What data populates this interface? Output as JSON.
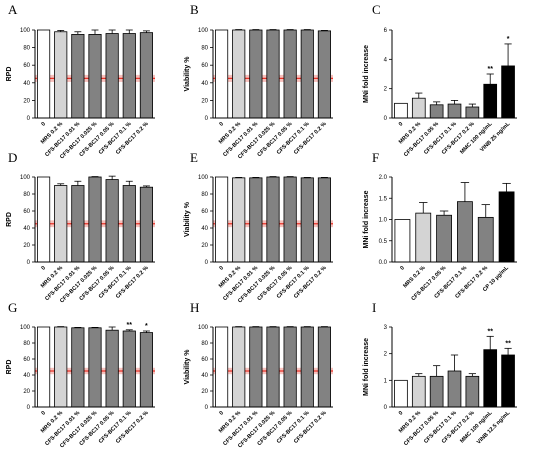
{
  "colors": {
    "white_bar": "#ffffff",
    "light_grey_bar": "#d4d4d4",
    "dark_grey_bar": "#828282",
    "black_bar": "#000000",
    "threshold_line": "#e8342a",
    "threshold_band": "#f6b5b0"
  },
  "chart_data": [
    {
      "panel": "A",
      "type": "bar",
      "ylabel": "RPD",
      "ylim": [
        0,
        100
      ],
      "yticks": [
        0,
        20,
        40,
        60,
        80,
        100
      ],
      "threshold": 45,
      "threshold_band": [
        41,
        49
      ],
      "categories": [
        "0",
        "MRS 0.2 %",
        "CFS-BC17 0.01 %",
        "CFS-BC17 0.025 %",
        "CFS-BC17 0.05 %",
        "CFS-BC17 0.1 %",
        "CFS-BC17 0.2 %"
      ],
      "values": [
        100,
        98,
        95,
        95,
        96,
        96,
        97
      ],
      "errors": [
        0,
        1.5,
        3,
        5,
        4,
        4,
        2
      ],
      "fills": [
        "white",
        "light",
        "dark",
        "dark",
        "dark",
        "dark",
        "dark"
      ],
      "stars": [
        "",
        "",
        "",
        "",
        "",
        "",
        ""
      ]
    },
    {
      "panel": "B",
      "type": "bar",
      "ylabel": "Viability %",
      "ylim": [
        0,
        100
      ],
      "yticks": [
        0,
        20,
        40,
        60,
        80,
        100
      ],
      "threshold": 45,
      "threshold_band": [
        41,
        49
      ],
      "categories": [
        "0",
        "MRS 0.2 %",
        "CFS-BC17 0.01 %",
        "CFS-BC17 0.025 %",
        "CFS-BC17 0.05 %",
        "CFS-BC17 0.1 %",
        "CFS-BC17 0.2 %"
      ],
      "values": [
        100,
        100,
        100,
        100,
        100,
        100,
        99
      ],
      "errors": [
        0,
        0.5,
        0.5,
        0.5,
        0.5,
        0.5,
        0.5
      ],
      "fills": [
        "white",
        "light",
        "dark",
        "dark",
        "dark",
        "dark",
        "dark"
      ],
      "stars": [
        "",
        "",
        "",
        "",
        "",
        "",
        ""
      ]
    },
    {
      "panel": "C",
      "type": "bar",
      "ylabel": "MNi fold increase",
      "ylim": [
        0,
        6
      ],
      "yticks": [
        0,
        2,
        4,
        6
      ],
      "threshold": null,
      "threshold_band": null,
      "categories": [
        "0",
        "MRS 0.2 %",
        "CFS-BC17 0.05 %",
        "CFS-BC17 0.1 %",
        "CFS-BC17 0.2 %",
        "MMC 100 ng/mL",
        "VINB 25 ng/mL"
      ],
      "values": [
        1.0,
        1.35,
        0.9,
        0.95,
        0.75,
        2.3,
        3.55
      ],
      "errors": [
        0,
        0.35,
        0.2,
        0.25,
        0.2,
        0.7,
        1.5
      ],
      "fills": [
        "white",
        "light",
        "dark",
        "dark",
        "dark",
        "black",
        "black"
      ],
      "stars": [
        "",
        "",
        "",
        "",
        "",
        "**",
        "*"
      ]
    },
    {
      "panel": "D",
      "type": "bar",
      "ylabel": "RPD",
      "ylim": [
        0,
        100
      ],
      "yticks": [
        0,
        20,
        40,
        60,
        80,
        100
      ],
      "threshold": 45,
      "threshold_band": [
        41,
        49
      ],
      "categories": [
        "0",
        "MRS 0.2 %",
        "CFS-BC17 0.01 %",
        "CFS-BC17 0.025 %",
        "CFS-BC17 0.05 %",
        "CFS-BC17 0.1 %",
        "CFS-BC17 0.2 %"
      ],
      "values": [
        100,
        90,
        90,
        100,
        97,
        90,
        88
      ],
      "errors": [
        0,
        2,
        5,
        0.5,
        4,
        5,
        1.5
      ],
      "fills": [
        "white",
        "light",
        "dark",
        "dark",
        "dark",
        "dark",
        "dark"
      ],
      "stars": [
        "",
        "",
        "",
        "",
        "",
        "",
        ""
      ]
    },
    {
      "panel": "E",
      "type": "bar",
      "ylabel": "Viability %",
      "ylim": [
        0,
        100
      ],
      "yticks": [
        0,
        20,
        40,
        60,
        80,
        100
      ],
      "threshold": 45,
      "threshold_band": [
        41,
        49
      ],
      "categories": [
        "0",
        "MRS 0.2 %",
        "CFS-BC17 0.01 %",
        "CFS-BC17 0.025 %",
        "CFS-BC17 0.05 %",
        "CFS-BC17 0.1 %",
        "CFS-BC17 0.2 %"
      ],
      "values": [
        100,
        99,
        99,
        100,
        100,
        99,
        99
      ],
      "errors": [
        0,
        0.5,
        0.5,
        0.5,
        0.5,
        0.5,
        0.5
      ],
      "fills": [
        "white",
        "light",
        "dark",
        "dark",
        "dark",
        "dark",
        "dark"
      ],
      "stars": [
        "",
        "",
        "",
        "",
        "",
        "",
        ""
      ]
    },
    {
      "panel": "F",
      "type": "bar",
      "ylabel": "MNi fold increase",
      "ylim": [
        0,
        2.0
      ],
      "yticks": [
        0,
        0.5,
        1.0,
        1.5,
        2.0
      ],
      "threshold": null,
      "threshold_band": null,
      "categories": [
        "0",
        "MRS 0.2 %",
        "CFS-BC17 0.05 %",
        "CFS-BC17 0.1 %",
        "CFS-BC17 0.2 %",
        "CP 10 µg/mL"
      ],
      "values": [
        1.0,
        1.15,
        1.1,
        1.42,
        1.05,
        1.65
      ],
      "errors": [
        0,
        0.25,
        0.1,
        0.45,
        0.3,
        0.2
      ],
      "fills": [
        "white",
        "light",
        "dark",
        "dark",
        "dark",
        "black"
      ],
      "stars": [
        "",
        "",
        "",
        "",
        "",
        ""
      ]
    },
    {
      "panel": "G",
      "type": "bar",
      "ylabel": "RPD",
      "ylim": [
        0,
        100
      ],
      "yticks": [
        0,
        20,
        40,
        60,
        80,
        100
      ],
      "threshold": 45,
      "threshold_band": [
        41,
        49
      ],
      "categories": [
        "0",
        "MRS 0.2 %",
        "CFS-BC17 0.01 %",
        "CFS-BC17 0.025 %",
        "CFS-BC17 0.05 %",
        "CFS-BC17 0.1 %",
        "CFS-BC17 0.2 %"
      ],
      "values": [
        100,
        100,
        99,
        99,
        96,
        95,
        93
      ],
      "errors": [
        0,
        0.5,
        0.5,
        0.5,
        4,
        1.5,
        2
      ],
      "fills": [
        "white",
        "light",
        "dark",
        "dark",
        "dark",
        "dark",
        "dark"
      ],
      "stars": [
        "",
        "",
        "",
        "",
        "",
        "**",
        "*"
      ]
    },
    {
      "panel": "H",
      "type": "bar",
      "ylabel": "Viability %",
      "ylim": [
        0,
        100
      ],
      "yticks": [
        0,
        20,
        40,
        60,
        80,
        100
      ],
      "threshold": 45,
      "threshold_band": [
        41,
        49
      ],
      "categories": [
        "0",
        "MRS 0.2 %",
        "CFS-BC17 0.01 %",
        "CFS-BC17 0.025 %",
        "CFS-BC17 0.05 %",
        "CFS-BC17 0.1 %",
        "CFS-BC17 0.2 %"
      ],
      "values": [
        100,
        100,
        100,
        100,
        100,
        100,
        100
      ],
      "errors": [
        0,
        0.5,
        0.5,
        0.5,
        0.5,
        0.5,
        0.5
      ],
      "fills": [
        "white",
        "light",
        "dark",
        "dark",
        "dark",
        "dark",
        "dark"
      ],
      "stars": [
        "",
        "",
        "",
        "",
        "",
        "",
        ""
      ]
    },
    {
      "panel": "I",
      "type": "bar",
      "ylabel": "MNi fold increase",
      "ylim": [
        0,
        3
      ],
      "yticks": [
        0,
        1,
        2,
        3
      ],
      "threshold": null,
      "threshold_band": null,
      "categories": [
        "0",
        "MRS 0.2 %",
        "CFS-BC17 0.05 %",
        "CFS-BC17 0.1 %",
        "CFS-BC17 0.2 %",
        "MMC 100 ng/mL",
        "VINB 12.5 ng/mL"
      ],
      "values": [
        1.0,
        1.15,
        1.15,
        1.35,
        1.15,
        2.15,
        1.95
      ],
      "errors": [
        0,
        0.1,
        0.4,
        0.6,
        0.1,
        0.5,
        0.25
      ],
      "fills": [
        "white",
        "light",
        "dark",
        "dark",
        "dark",
        "black",
        "black"
      ],
      "stars": [
        "",
        "",
        "",
        "",
        "",
        "**",
        "**"
      ]
    }
  ]
}
